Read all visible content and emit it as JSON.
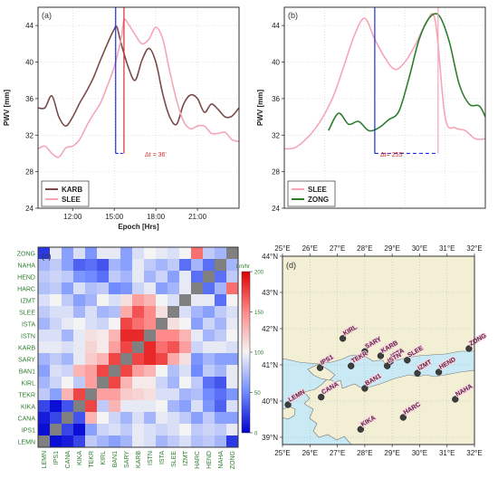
{
  "chart_data": [
    {
      "panel": "(a)",
      "type": "line",
      "xlabel": "Epoch [Hrs]",
      "ylabel": "PWV [mm]",
      "x_ticks": [
        "12:00",
        "15:00",
        "18:00",
        "21:00"
      ],
      "y_ticks": [
        24,
        28,
        32,
        36,
        40,
        44
      ],
      "xlim": [
        9.5,
        24.0
      ],
      "ylim": [
        24,
        46
      ],
      "grid": true,
      "legend_position": "bottom-left",
      "annotation": "Δt = 36'",
      "markers": {
        "karb_peak_hr": 15.1,
        "slee_peak_hr": 15.7,
        "level_pwv": 30.0
      },
      "series": [
        {
          "name": "KARB",
          "color": "#7a4a4a",
          "x": [
            9.5,
            10,
            10.5,
            11,
            11.5,
            12,
            12.5,
            13,
            13.5,
            14,
            14.5,
            15,
            15.2,
            15.5,
            16,
            16.5,
            17,
            17.5,
            18,
            18.5,
            19,
            19.5,
            20,
            20.5,
            21,
            21.5,
            22,
            22.5,
            23,
            23.5,
            24
          ],
          "y": [
            35,
            35,
            36.3,
            34,
            33,
            34,
            35.5,
            36.8,
            38.3,
            40.2,
            42,
            43.6,
            43.8,
            42,
            39.5,
            38,
            40.2,
            41.5,
            40,
            36.5,
            34,
            33.2,
            35.4,
            36.4,
            36,
            34.5,
            35.4,
            34.8,
            34,
            34.1,
            35
          ]
        },
        {
          "name": "SLEE",
          "color": "#f4a6b7",
          "x": [
            9.5,
            10,
            10.5,
            11,
            11.5,
            12,
            12.5,
            13,
            13.5,
            14,
            14.5,
            15,
            15.5,
            15.7,
            16,
            16.5,
            17,
            17.5,
            18,
            18.5,
            19,
            19.5,
            20,
            20.5,
            21,
            21.5,
            22,
            22.5,
            23,
            23.5,
            24
          ],
          "y": [
            30.5,
            30.8,
            30,
            29.6,
            30.6,
            30.8,
            31.5,
            33,
            34.3,
            35.5,
            37.4,
            39.5,
            42.6,
            44.6,
            44.2,
            43,
            42,
            42.5,
            43.8,
            42.5,
            39,
            35.8,
            33.5,
            32.7,
            33,
            33,
            32.2,
            32.2,
            32.3,
            31.5,
            31.3
          ]
        }
      ]
    },
    {
      "panel": "(b)",
      "type": "line",
      "xlabel": "",
      "ylabel": "PWV [mm]",
      "y_ticks": [
        24,
        28,
        32,
        36,
        40,
        44
      ],
      "ylim": [
        24,
        46
      ],
      "grid": true,
      "legend_position": "bottom-left",
      "annotation": "Δt= 255'",
      "series": [
        {
          "name": "SLEE",
          "color": "#f4a6b7",
          "x": [
            0,
            0.05,
            0.1,
            0.15,
            0.2,
            0.25,
            0.3,
            0.35,
            0.4,
            0.45,
            0.5,
            0.55,
            0.6,
            0.65,
            0.7,
            0.75,
            0.8,
            0.85,
            0.9,
            0.95,
            1.0
          ],
          "y": [
            30.5,
            30.6,
            31.4,
            32.6,
            34.3,
            36.6,
            39.8,
            43,
            44.8,
            42.5,
            40.5,
            39.2,
            40,
            41.8,
            44,
            44.6,
            34,
            32.8,
            32.5,
            31.6,
            31.6
          ]
        },
        {
          "name": "ZONG",
          "color": "#2e7d2e",
          "x": [
            0.22,
            0.27,
            0.32,
            0.37,
            0.42,
            0.47,
            0.52,
            0.57,
            0.62,
            0.67,
            0.72,
            0.77,
            0.82,
            0.87,
            0.92,
            0.97,
            1.0
          ],
          "y": [
            32.5,
            34.4,
            33.2,
            33.5,
            32.5,
            32.8,
            33.7,
            34.6,
            38.2,
            42.4,
            44.8,
            45.1,
            42.3,
            37.6,
            35.4,
            35.2,
            34
          ]
        }
      ]
    },
    {
      "panel": "(c)",
      "type": "heatmap",
      "colorbar_label": "km/hr",
      "colorbar_ticks": [
        0,
        50,
        100,
        150,
        200
      ],
      "colorbar_range": [
        0,
        200
      ],
      "row_labels": [
        "ZONG",
        "NAHA",
        "HEND",
        "HARC",
        "IZMT",
        "SLEE",
        "ISTA",
        "ISTN",
        "KARB",
        "SARY",
        "BAN1",
        "KIRL",
        "TEKR",
        "KIKA",
        "CANA",
        "IPS1",
        "LEMN"
      ],
      "col_labels": [
        "LEMN",
        "IPS1",
        "CANA",
        "KIKA",
        "TEKR",
        "KIRL",
        "BAN1",
        "SARY",
        "KARB",
        "ISTN",
        "ISTA",
        "SLEE",
        "IZMT",
        "HARC",
        "HEND",
        "NAHA",
        "ZONG"
      ],
      "values": [
        [
          20,
          95,
          60,
          90,
          55,
          95,
          95,
          60,
          90,
          100,
          95,
          90,
          100,
          160,
          80,
          70,
          null
        ],
        [
          70,
          80,
          60,
          35,
          40,
          30,
          70,
          60,
          95,
          80,
          70,
          80,
          40,
          70,
          40,
          null,
          70
        ],
        [
          80,
          85,
          80,
          55,
          50,
          40,
          80,
          70,
          95,
          70,
          85,
          60,
          95,
          40,
          null,
          40,
          80
        ],
        [
          75,
          80,
          60,
          90,
          75,
          80,
          50,
          55,
          85,
          95,
          60,
          70,
          95,
          null,
          40,
          70,
          160
        ],
        [
          90,
          100,
          80,
          60,
          70,
          100,
          90,
          110,
          140,
          130,
          100,
          90,
          null,
          95,
          95,
          40,
          100
        ],
        [
          80,
          90,
          90,
          70,
          90,
          70,
          75,
          135,
          170,
          150,
          110,
          null,
          90,
          70,
          60,
          80,
          90
        ],
        [
          70,
          85,
          95,
          100,
          90,
          85,
          100,
          175,
          160,
          150,
          null,
          110,
          100,
          60,
          85,
          70,
          95
        ],
        [
          90,
          90,
          70,
          95,
          110,
          105,
          130,
          185,
          185,
          null,
          150,
          150,
          130,
          95,
          70,
          80,
          100
        ],
        [
          95,
          95,
          90,
          95,
          115,
          105,
          140,
          175,
          null,
          185,
          160,
          170,
          140,
          85,
          95,
          95,
          90
        ],
        [
          70,
          80,
          70,
          95,
          120,
          130,
          175,
          null,
          175,
          185,
          175,
          135,
          110,
          55,
          70,
          60,
          60
        ],
        [
          60,
          90,
          85,
          130,
          140,
          175,
          null,
          175,
          140,
          130,
          100,
          75,
          90,
          50,
          80,
          70,
          95
        ],
        [
          70,
          85,
          100,
          80,
          140,
          null,
          175,
          130,
          105,
          105,
          85,
          70,
          100,
          80,
          40,
          30,
          95
        ],
        [
          80,
          60,
          130,
          175,
          null,
          140,
          140,
          120,
          115,
          110,
          90,
          90,
          70,
          75,
          50,
          40,
          55
        ],
        [
          25,
          5,
          30,
          null,
          175,
          80,
          130,
          95,
          95,
          95,
          100,
          70,
          60,
          90,
          55,
          35,
          90
        ],
        [
          10,
          25,
          null,
          30,
          130,
          100,
          85,
          70,
          90,
          70,
          95,
          90,
          80,
          60,
          80,
          60,
          60
        ],
        [
          5,
          null,
          25,
          5,
          60,
          85,
          90,
          80,
          95,
          90,
          85,
          90,
          100,
          80,
          85,
          80,
          95
        ],
        [
          null,
          5,
          10,
          25,
          80,
          70,
          60,
          70,
          95,
          90,
          70,
          80,
          90,
          75,
          80,
          70,
          20
        ]
      ]
    },
    {
      "panel": "(d)",
      "type": "map",
      "lon_ticks": [
        "25°E",
        "26°E",
        "27°E",
        "28°E",
        "29°E",
        "30°E",
        "31°E",
        "32°E"
      ],
      "lat_ticks": [
        "39°N",
        "40°N",
        "41°N",
        "42°N",
        "43°N",
        "44°N"
      ],
      "lon_range": [
        25,
        32
      ],
      "lat_range": [
        38.8,
        44
      ],
      "land_color": "#f2efd4",
      "sea_color": "#c9e9f5",
      "stations": [
        {
          "name": "KIRL",
          "lon": 27.2,
          "lat": 41.73
        },
        {
          "name": "SARY",
          "lon": 28.0,
          "lat": 41.37
        },
        {
          "name": "KARB",
          "lon": 28.58,
          "lat": 41.25
        },
        {
          "name": "IPS1",
          "lon": 26.37,
          "lat": 40.92
        },
        {
          "name": "TEKR",
          "lon": 27.5,
          "lat": 40.97
        },
        {
          "name": "ISTA",
          "lon": 28.94,
          "lat": 41.1
        },
        {
          "name": "ISTN",
          "lon": 28.82,
          "lat": 40.97
        },
        {
          "name": "SLEE",
          "lon": 29.55,
          "lat": 41.13
        },
        {
          "name": "ZONG",
          "lon": 31.8,
          "lat": 41.45
        },
        {
          "name": "IZMT",
          "lon": 29.92,
          "lat": 40.77
        },
        {
          "name": "HEND",
          "lon": 30.7,
          "lat": 40.8
        },
        {
          "name": "BAN1",
          "lon": 28.0,
          "lat": 40.35
        },
        {
          "name": "CANA",
          "lon": 26.41,
          "lat": 40.11
        },
        {
          "name": "LEMN",
          "lon": 25.2,
          "lat": 39.9
        },
        {
          "name": "NAHA",
          "lon": 31.3,
          "lat": 40.05
        },
        {
          "name": "HARC",
          "lon": 29.4,
          "lat": 39.55
        },
        {
          "name": "KIKA",
          "lon": 27.85,
          "lat": 39.22
        }
      ]
    }
  ]
}
